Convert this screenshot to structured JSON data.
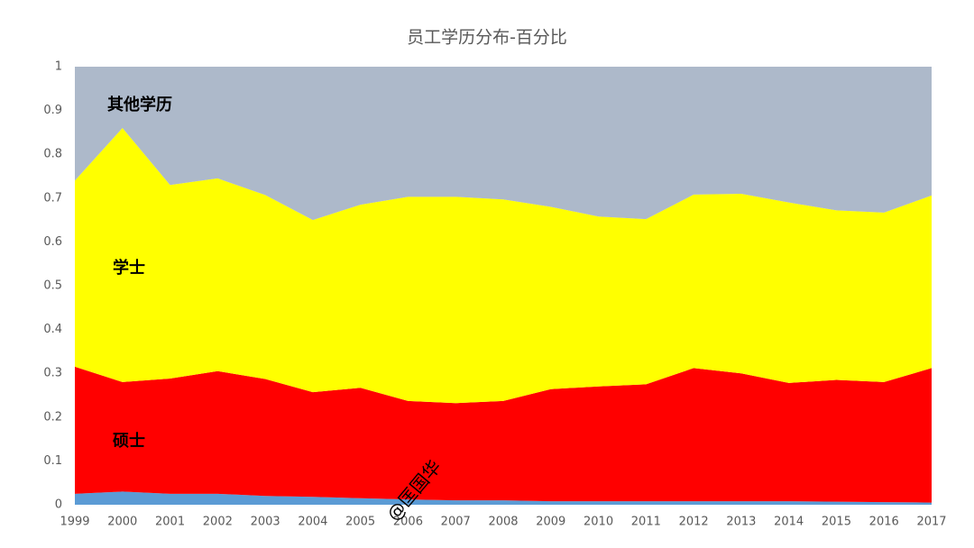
{
  "chart_data": {
    "type": "stacked_area",
    "title": "员工学历分布-百分比",
    "x": [
      1999,
      2000,
      2001,
      2002,
      2003,
      2004,
      2005,
      2006,
      2007,
      2008,
      2009,
      2010,
      2011,
      2012,
      2013,
      2014,
      2015,
      2016,
      2017
    ],
    "xlim": [
      1999,
      2017
    ],
    "xticks": [
      1999,
      2000,
      2001,
      2002,
      2003,
      2004,
      2005,
      2006,
      2007,
      2008,
      2009,
      2010,
      2011,
      2012,
      2013,
      2014,
      2015,
      2016,
      2017
    ],
    "ylim": [
      0,
      1
    ],
    "yticks": [
      0,
      0.1,
      0.2,
      0.3,
      0.4,
      0.5,
      0.6,
      0.7,
      0.8,
      0.9,
      1
    ],
    "series": [
      {
        "color": "#5b9bd5",
        "values": [
          0.025,
          0.03,
          0.025,
          0.025,
          0.02,
          0.018,
          0.015,
          0.012,
          0.01,
          0.01,
          0.008,
          0.008,
          0.008,
          0.008,
          0.008,
          0.008,
          0.007,
          0.006,
          0.005
        ]
      },
      {
        "name": "硕士",
        "color": "#ff0000",
        "values": [
          0.29,
          0.25,
          0.263,
          0.28,
          0.267,
          0.239,
          0.252,
          0.225,
          0.222,
          0.227,
          0.256,
          0.262,
          0.267,
          0.304,
          0.292,
          0.27,
          0.278,
          0.274,
          0.307
        ]
      },
      {
        "name": "学士",
        "color": "#ffff00",
        "values": [
          0.425,
          0.58,
          0.442,
          0.44,
          0.42,
          0.393,
          0.418,
          0.466,
          0.471,
          0.46,
          0.416,
          0.388,
          0.377,
          0.396,
          0.41,
          0.412,
          0.387,
          0.387,
          0.394
        ]
      },
      {
        "name": "其他学历",
        "color": "#adb9ca",
        "values": [
          0.26,
          0.14,
          0.27,
          0.255,
          0.293,
          0.35,
          0.315,
          0.297,
          0.297,
          0.303,
          0.32,
          0.342,
          0.348,
          0.292,
          0.29,
          0.31,
          0.328,
          0.333,
          0.294
        ]
      }
    ],
    "watermark": "@匡国华"
  }
}
